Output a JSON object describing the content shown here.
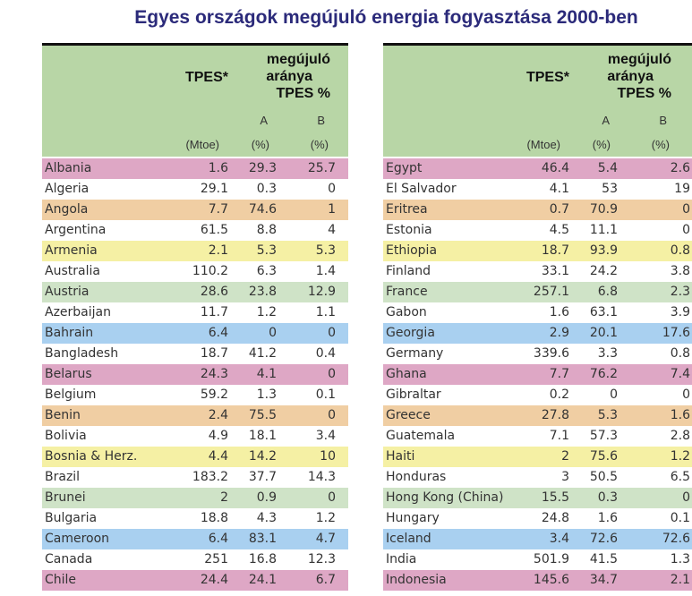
{
  "title": "Egyes országok megújuló energia fogyasztása 2000-ben",
  "colors": {
    "pink": "#dea7c5",
    "white": "#ffffff",
    "orange": "#f0cea3",
    "yellow": "#f5f0a4",
    "green": "#cfe3c7",
    "blue": "#a9d0f0",
    "header": "#b8d6a6"
  },
  "header": {
    "tpes": "TPES*",
    "share": [
      "megújuló",
      "aránya",
      "TPES %"
    ],
    "col_a": "A",
    "col_b": "B",
    "unit_tpes": "(Mtoe)",
    "unit_a": "(%)",
    "unit_b": "(%)"
  },
  "left_rows": [
    {
      "country": "Albania",
      "tpes": "1.6",
      "a": "29.3",
      "b": "25.7",
      "color": "pink"
    },
    {
      "country": "Algeria",
      "tpes": "29.1",
      "a": "0.3",
      "b": "0",
      "color": "white"
    },
    {
      "country": "Angola",
      "tpes": "7.7",
      "a": "74.6",
      "b": "1",
      "color": "orange"
    },
    {
      "country": "Argentina",
      "tpes": "61.5",
      "a": "8.8",
      "b": "4",
      "color": "white"
    },
    {
      "country": "Armenia",
      "tpes": "2.1",
      "a": "5.3",
      "b": "5.3",
      "color": "yellow"
    },
    {
      "country": "Australia",
      "tpes": "110.2",
      "a": "6.3",
      "b": "1.4",
      "color": "white"
    },
    {
      "country": "Austria",
      "tpes": "28.6",
      "a": "23.8",
      "b": "12.9",
      "color": "green"
    },
    {
      "country": "Azerbaijan",
      "tpes": "11.7",
      "a": "1.2",
      "b": "1.1",
      "color": "white"
    },
    {
      "country": "Bahrain",
      "tpes": "6.4",
      "a": "0",
      "b": "0",
      "color": "blue"
    },
    {
      "country": "Bangladesh",
      "tpes": "18.7",
      "a": "41.2",
      "b": "0.4",
      "color": "white"
    },
    {
      "country": "Belarus",
      "tpes": "24.3",
      "a": "4.1",
      "b": "0",
      "color": "pink"
    },
    {
      "country": "Belgium",
      "tpes": "59.2",
      "a": "1.3",
      "b": "0.1",
      "color": "white"
    },
    {
      "country": "Benin",
      "tpes": "2.4",
      "a": "75.5",
      "b": "0",
      "color": "orange"
    },
    {
      "country": "Bolivia",
      "tpes": "4.9",
      "a": "18.1",
      "b": "3.4",
      "color": "white"
    },
    {
      "country": "Bosnia & Herz.",
      "tpes": "4.4",
      "a": "14.2",
      "b": "10",
      "color": "yellow"
    },
    {
      "country": "Brazil",
      "tpes": "183.2",
      "a": "37.7",
      "b": "14.3",
      "color": "white"
    },
    {
      "country": "Brunei",
      "tpes": "2",
      "a": "0.9",
      "b": "0",
      "color": "green"
    },
    {
      "country": "Bulgaria",
      "tpes": "18.8",
      "a": "4.3",
      "b": "1.2",
      "color": "white"
    },
    {
      "country": "Cameroon",
      "tpes": "6.4",
      "a": "83.1",
      "b": "4.7",
      "color": "blue"
    },
    {
      "country": "Canada",
      "tpes": "251",
      "a": "16.8",
      "b": "12.3",
      "color": "white"
    },
    {
      "country": "Chile",
      "tpes": "24.4",
      "a": "24.1",
      "b": "6.7",
      "color": "pink"
    }
  ],
  "right_rows": [
    {
      "country": "Egypt",
      "tpes": "46.4",
      "a": "5.4",
      "b": "2.6",
      "color": "pink"
    },
    {
      "country": "El Salvador",
      "tpes": "4.1",
      "a": "53",
      "b": "19",
      "color": "white"
    },
    {
      "country": "Eritrea",
      "tpes": "0.7",
      "a": "70.9",
      "b": "0",
      "color": "orange"
    },
    {
      "country": "Estonia",
      "tpes": "4.5",
      "a": "11.1",
      "b": "0",
      "color": "white"
    },
    {
      "country": "Ethiopia",
      "tpes": "18.7",
      "a": "93.9",
      "b": "0.8",
      "color": "yellow"
    },
    {
      "country": "Finland",
      "tpes": "33.1",
      "a": "24.2",
      "b": "3.8",
      "color": "white"
    },
    {
      "country": "France",
      "tpes": "257.1",
      "a": "6.8",
      "b": "2.3",
      "color": "green"
    },
    {
      "country": "Gabon",
      "tpes": "1.6",
      "a": "63.1",
      "b": "3.9",
      "color": "white"
    },
    {
      "country": "Georgia",
      "tpes": "2.9",
      "a": "20.1",
      "b": "17.6",
      "color": "blue"
    },
    {
      "country": "Germany",
      "tpes": "339.6",
      "a": "3.3",
      "b": "0.8",
      "color": "white"
    },
    {
      "country": "Ghana",
      "tpes": "7.7",
      "a": "76.2",
      "b": "7.4",
      "color": "pink"
    },
    {
      "country": "Gibraltar",
      "tpes": "0.2",
      "a": "0",
      "b": "0",
      "color": "white"
    },
    {
      "country": "Greece",
      "tpes": "27.8",
      "a": "5.3",
      "b": "1.6",
      "color": "orange"
    },
    {
      "country": "Guatemala",
      "tpes": "7.1",
      "a": "57.3",
      "b": "2.8",
      "color": "white"
    },
    {
      "country": "Haiti",
      "tpes": "2",
      "a": "75.6",
      "b": "1.2",
      "color": "yellow"
    },
    {
      "country": "Honduras",
      "tpes": "3",
      "a": "50.5",
      "b": "6.5",
      "color": "white"
    },
    {
      "country": "Hong Kong (China)",
      "tpes": "15.5",
      "a": "0.3",
      "b": "0",
      "color": "green"
    },
    {
      "country": "Hungary",
      "tpes": "24.8",
      "a": "1.6",
      "b": "0.1",
      "color": "white"
    },
    {
      "country": "Iceland",
      "tpes": "3.4",
      "a": "72.6",
      "b": "72.6",
      "color": "blue"
    },
    {
      "country": "India",
      "tpes": "501.9",
      "a": "41.5",
      "b": "1.3",
      "color": "white"
    },
    {
      "country": "Indonesia",
      "tpes": "145.6",
      "a": "34.7",
      "b": "2.1",
      "color": "pink"
    }
  ]
}
